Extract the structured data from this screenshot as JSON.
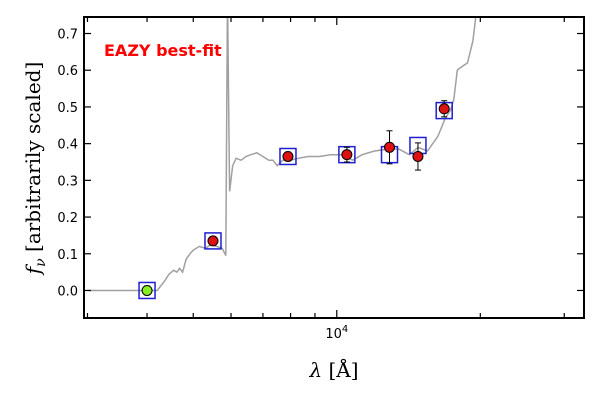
{
  "chart_data": {
    "type": "scatter",
    "title": "",
    "xlabel": "λ [Å]",
    "ylabel": "f_ν [arbitrarily scaled]",
    "xscale": "log",
    "xlim": [
      2950,
      33000
    ],
    "ylim": [
      -0.075,
      0.745
    ],
    "x_ticks": [
      {
        "value": 10000,
        "label": "10",
        "superscript": "4"
      }
    ],
    "y_ticks": [
      {
        "value": 0.0,
        "label": "0.0"
      },
      {
        "value": 0.1,
        "label": "0.1"
      },
      {
        "value": 0.2,
        "label": "0.2"
      },
      {
        "value": 0.3,
        "label": "0.3"
      },
      {
        "value": 0.4,
        "label": "0.4"
      },
      {
        "value": 0.5,
        "label": "0.5"
      },
      {
        "value": 0.6,
        "label": "0.6"
      },
      {
        "value": 0.7,
        "label": "0.7"
      }
    ],
    "annotation": {
      "text": "EAZY best-fit",
      "color": "#ff0000",
      "position": "top-left"
    },
    "grid": false,
    "colors": {
      "model": "#a0a0a0",
      "marker_fill": "#dd1111",
      "marker_fill_upper": "#88ee22",
      "marker_edge": "#000000",
      "box": "#1f1fd0",
      "errorbar": "#000000"
    },
    "model_spectrum": [
      [
        3000,
        0.0
      ],
      [
        3500,
        0.0
      ],
      [
        4000,
        0.0
      ],
      [
        4200,
        0.0
      ],
      [
        4350,
        0.025
      ],
      [
        4450,
        0.045
      ],
      [
        4550,
        0.055
      ],
      [
        4620,
        0.05
      ],
      [
        4680,
        0.06
      ],
      [
        4750,
        0.05
      ],
      [
        4830,
        0.085
      ],
      [
        4920,
        0.1
      ],
      [
        5000,
        0.11
      ],
      [
        5150,
        0.12
      ],
      [
        5300,
        0.115
      ],
      [
        5450,
        0.125
      ],
      [
        5600,
        0.12
      ],
      [
        5750,
        0.115
      ],
      [
        5850,
        0.095
      ],
      [
        5900,
        0.8
      ],
      [
        5960,
        0.27
      ],
      [
        6050,
        0.34
      ],
      [
        6150,
        0.36
      ],
      [
        6300,
        0.355
      ],
      [
        6450,
        0.365
      ],
      [
        6600,
        0.37
      ],
      [
        6800,
        0.375
      ],
      [
        7000,
        0.365
      ],
      [
        7200,
        0.355
      ],
      [
        7350,
        0.355
      ],
      [
        7500,
        0.34
      ],
      [
        7700,
        0.355
      ],
      [
        8000,
        0.355
      ],
      [
        8300,
        0.36
      ],
      [
        8700,
        0.365
      ],
      [
        9200,
        0.365
      ],
      [
        9700,
        0.37
      ],
      [
        10200,
        0.37
      ],
      [
        10800,
        0.355
      ],
      [
        11300,
        0.37
      ],
      [
        12000,
        0.38
      ],
      [
        12800,
        0.385
      ],
      [
        13500,
        0.385
      ],
      [
        14200,
        0.37
      ],
      [
        14800,
        0.39
      ],
      [
        15500,
        0.38
      ],
      [
        16300,
        0.42
      ],
      [
        16900,
        0.47
      ],
      [
        17300,
        0.49
      ],
      [
        17600,
        0.52
      ],
      [
        17900,
        0.6
      ],
      [
        18300,
        0.61
      ],
      [
        18800,
        0.62
      ],
      [
        19300,
        0.68
      ],
      [
        19800,
        0.8
      ]
    ],
    "series": [
      {
        "name": "",
        "points": [
          {
            "x": 4000,
            "y": 0.0,
            "yerr": 0.012,
            "model": 0.0,
            "fill": "upper"
          },
          {
            "x": 5500,
            "y": 0.135,
            "yerr": 0.008,
            "model": 0.135,
            "fill": "data"
          },
          {
            "x": 7900,
            "y": 0.365,
            "yerr": 0.012,
            "model": 0.365,
            "fill": "data"
          },
          {
            "x": 10500,
            "y": 0.37,
            "yerr": 0.02,
            "model": 0.37,
            "fill": "data"
          },
          {
            "x": 12900,
            "y": 0.39,
            "yerr": 0.045,
            "model": 0.37,
            "fill": "data"
          },
          {
            "x": 14800,
            "y": 0.365,
            "yerr": 0.037,
            "model": 0.395,
            "fill": "data"
          },
          {
            "x": 16800,
            "y": 0.495,
            "yerr": 0.022,
            "model": 0.49,
            "fill": "data"
          }
        ]
      }
    ]
  }
}
